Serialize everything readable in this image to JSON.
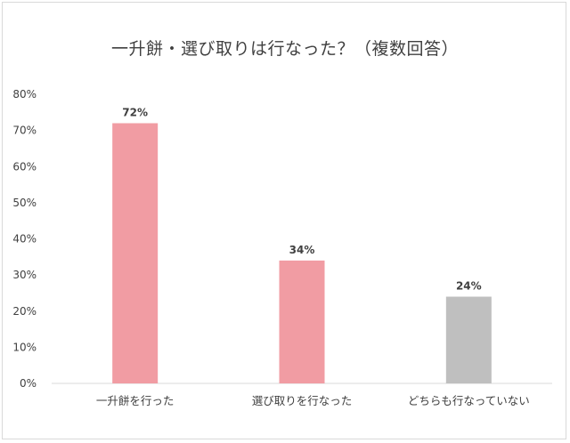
{
  "chart_data": {
    "type": "bar",
    "title": "一升餅・選び取りは行なった？（複数回答）",
    "categories": [
      "一升餅を行った",
      "選び取りを行なった",
      "どちらも行なっていない"
    ],
    "values": [
      72,
      34,
      24
    ],
    "data_labels": [
      "72%",
      "34%",
      "24%"
    ],
    "bar_colors": [
      "#f19ca3",
      "#f19ca3",
      "#bfbfbf"
    ],
    "ylim": [
      0,
      80
    ],
    "yticks": [
      "0%",
      "10%",
      "20%",
      "30%",
      "40%",
      "50%",
      "60%",
      "70%",
      "80%"
    ],
    "grid": false,
    "legend": "none",
    "xlabel": "",
    "ylabel": ""
  }
}
